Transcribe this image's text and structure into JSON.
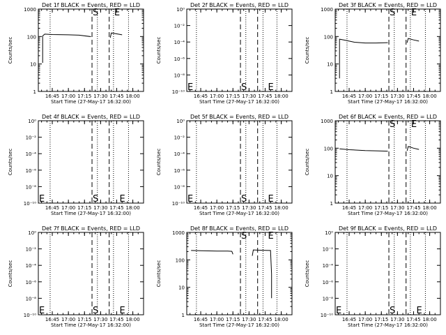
{
  "figure": {
    "background": "#ffffff",
    "foreground": "#000000",
    "columns": 3,
    "rows": 3
  },
  "chart_data": [
    {
      "type": "line",
      "title": "Det 1f BLACK = Events, RED = LLD",
      "ylabel": "Counts/sec",
      "xlabel": "Start Time (27-May-17 16:32:00)",
      "y_scale": "log",
      "ylim": [
        1,
        1000
      ],
      "y_ticks": [
        "1",
        "10",
        "100",
        "1000"
      ],
      "x_ticks": [
        "16:45",
        "17:00",
        "17:15",
        "17:30",
        "17:45",
        "18:00"
      ],
      "xlim": [
        "16:32",
        "18:10"
      ],
      "dotted_lines": [
        "16:43",
        "17:27",
        "17:42",
        "17:56"
      ],
      "dashed_lines": [
        "17:22",
        "17:38"
      ],
      "markers": [
        {
          "label": "S",
          "x": "17:22",
          "pos": "top"
        },
        {
          "label": "E",
          "x": "17:42",
          "pos": "top"
        }
      ],
      "series": [
        {
          "segments": [
            {
              "x": [
                "16:36",
                "16:36",
                "16:38",
                "16:45",
                "17:00",
                "17:10",
                "17:21"
              ],
              "y": [
                11,
                105,
                122,
                118,
                115,
                112,
                99
              ]
            },
            {
              "x": [
                "17:39",
                "17:40",
                "17:45",
                "17:50"
              ],
              "y": [
                90,
                135,
                125,
                115
              ]
            }
          ]
        }
      ]
    },
    {
      "type": "line",
      "title": "Det 2f BLACK = Events, RED = LLD",
      "ylabel": "Counts/sec",
      "xlabel": "Start Time (27-May-17 16:32:00)",
      "y_scale": "log",
      "ylim": [
        1,
        1e-10
      ],
      "y_ticks": [
        "10⁰",
        "10⁻²",
        "10⁻⁴",
        "10⁻⁶",
        "10⁻⁸",
        "10⁻¹⁰"
      ],
      "x_ticks": [
        "16:45",
        "17:00",
        "17:15",
        "17:30",
        "17:45",
        "18:00"
      ],
      "xlim": [
        "16:32",
        "18:10"
      ],
      "dotted_lines": [
        "16:41",
        "17:27",
        "17:43",
        "17:56"
      ],
      "dashed_lines": [
        "17:22",
        "17:38"
      ],
      "markers": [
        {
          "label": "E",
          "x": "16:32",
          "pos": "bottom"
        },
        {
          "label": "S",
          "x": "17:22",
          "pos": "bottom"
        },
        {
          "label": "E",
          "x": "17:47",
          "pos": "bottom"
        }
      ],
      "series": []
    },
    {
      "type": "line",
      "title": "Det 3f BLACK = Events, RED = LLD",
      "ylabel": "Counts/sec",
      "xlabel": "Start Time (27-May-17 16:32:00)",
      "y_scale": "log",
      "ylim": [
        1,
        1000
      ],
      "y_ticks": [
        "1",
        "10",
        "100",
        "1000"
      ],
      "x_ticks": [
        "16:45",
        "17:00",
        "17:15",
        "17:30",
        "17:45",
        "18:00"
      ],
      "xlim": [
        "16:32",
        "18:10"
      ],
      "dotted_lines": [
        "16:43",
        "17:27",
        "17:42",
        "17:56"
      ],
      "dashed_lines": [
        "17:22",
        "17:38"
      ],
      "markers": [
        {
          "label": "S",
          "x": "17:22",
          "pos": "top"
        },
        {
          "label": "E",
          "x": "17:42",
          "pos": "top"
        }
      ],
      "series": [
        {
          "segments": [
            {
              "x": [
                "16:36",
                "16:36",
                "16:40",
                "16:50",
                "17:00",
                "17:10",
                "17:21"
              ],
              "y": [
                3,
                80,
                75,
                62,
                58,
                58,
                60
              ]
            },
            {
              "x": [
                "17:39",
                "17:40",
                "17:45",
                "17:50"
              ],
              "y": [
                60,
                85,
                75,
                68
              ]
            }
          ]
        }
      ]
    },
    {
      "type": "line",
      "title": "Det 4f BLACK = Events, RED = LLD",
      "ylabel": "Counts/sec",
      "xlabel": "Start Time (27-May-17 16:32:00)",
      "y_scale": "log",
      "ylim": [
        1,
        1e-10
      ],
      "y_ticks": [
        "10⁰",
        "10⁻²",
        "10⁻⁴",
        "10⁻⁶",
        "10⁻⁸",
        "10⁻¹⁰"
      ],
      "x_ticks": [
        "16:45",
        "17:00",
        "17:15",
        "17:30",
        "17:45",
        "18:00"
      ],
      "xlim": [
        "16:32",
        "18:10"
      ],
      "dotted_lines": [
        "16:43",
        "17:27",
        "17:42",
        "17:56"
      ],
      "dashed_lines": [
        "17:22",
        "17:38"
      ],
      "markers": [
        {
          "label": "E",
          "x": "16:32",
          "pos": "bottom"
        },
        {
          "label": "S",
          "x": "17:22",
          "pos": "bottom"
        },
        {
          "label": "E",
          "x": "17:47",
          "pos": "bottom"
        }
      ],
      "series": []
    },
    {
      "type": "line",
      "title": "Det 5f BLACK = Events, RED = LLD",
      "ylabel": "Counts/sec",
      "xlabel": "Start Time (27-May-17 16:32:00)",
      "y_scale": "log",
      "ylim": [
        1,
        1e-10
      ],
      "y_ticks": [
        "10⁰",
        "10⁻²",
        "10⁻⁴",
        "10⁻⁶",
        "10⁻⁸",
        "10⁻¹⁰"
      ],
      "x_ticks": [
        "16:45",
        "17:00",
        "17:15",
        "17:30",
        "17:45",
        "18:00"
      ],
      "xlim": [
        "16:32",
        "18:10"
      ],
      "dotted_lines": [
        "16:41",
        "17:27",
        "17:43",
        "17:56"
      ],
      "dashed_lines": [
        "17:22",
        "17:38"
      ],
      "markers": [
        {
          "label": "E",
          "x": "16:32",
          "pos": "bottom"
        },
        {
          "label": "S",
          "x": "17:22",
          "pos": "bottom"
        },
        {
          "label": "E",
          "x": "17:47",
          "pos": "bottom"
        }
      ],
      "series": []
    },
    {
      "type": "line",
      "title": "Det 6f BLACK = Events, RED = LLD",
      "ylabel": "Counts/sec",
      "xlabel": "Start Time (27-May-17 16:32:00)",
      "y_scale": "log",
      "ylim": [
        1,
        1000
      ],
      "y_ticks": [
        "1",
        "10",
        "100",
        "1000"
      ],
      "x_ticks": [
        "16:45",
        "17:00",
        "17:15",
        "17:30",
        "17:45",
        "18:00"
      ],
      "xlim": [
        "16:32",
        "18:10"
      ],
      "dotted_lines": [
        "16:43",
        "17:27",
        "17:42",
        "17:56"
      ],
      "dashed_lines": [
        "17:22",
        "17:38"
      ],
      "markers": [
        {
          "label": "S",
          "x": "17:22",
          "pos": "top"
        },
        {
          "label": "E",
          "x": "17:42",
          "pos": "top"
        }
      ],
      "series": [
        {
          "segments": [
            {
              "x": [
                "16:36",
                "16:45",
                "17:00",
                "17:10",
                "17:21"
              ],
              "y": [
                95,
                88,
                82,
                80,
                78
              ]
            },
            {
              "x": [
                "17:39",
                "17:40",
                "17:45",
                "17:50"
              ],
              "y": [
                80,
                115,
                100,
                90
              ]
            }
          ]
        }
      ]
    },
    {
      "type": "line",
      "title": "Det 7f BLACK = Events, RED = LLD",
      "ylabel": "Counts/sec",
      "xlabel": "Start Time (27-May-17 16:32:00)",
      "y_scale": "log",
      "ylim": [
        1,
        1e-10
      ],
      "y_ticks": [
        "10⁰",
        "10⁻²",
        "10⁻⁴",
        "10⁻⁶",
        "10⁻⁸",
        "10⁻¹⁰"
      ],
      "x_ticks": [
        "16:45",
        "17:00",
        "17:15",
        "17:30",
        "17:45",
        "18:00"
      ],
      "xlim": [
        "16:32",
        "18:10"
      ],
      "dotted_lines": [
        "16:43",
        "17:27",
        "17:42",
        "17:56"
      ],
      "dashed_lines": [
        "17:22",
        "17:38"
      ],
      "markers": [
        {
          "label": "E",
          "x": "16:32",
          "pos": "bottom"
        },
        {
          "label": "S",
          "x": "17:22",
          "pos": "bottom"
        },
        {
          "label": "E",
          "x": "17:47",
          "pos": "bottom"
        }
      ],
      "series": []
    },
    {
      "type": "line",
      "title": "Det 8f BLACK = Events, RED = LLD",
      "ylabel": "Counts/sec",
      "xlabel": "Start Time (27-May-17 16:32:00)",
      "y_scale": "log",
      "ylim": [
        1,
        1000
      ],
      "y_ticks": [
        "1",
        "10",
        "100",
        "1000"
      ],
      "x_ticks": [
        "16:45",
        "17:00",
        "17:15",
        "17:30",
        "17:45",
        "18:00"
      ],
      "xlim": [
        "16:32",
        "18:10"
      ],
      "dotted_lines": [
        "16:41",
        "17:27",
        "17:43",
        "17:56"
      ],
      "dashed_lines": [
        "17:22",
        "17:38"
      ],
      "markers": [
        {
          "label": "S",
          "x": "17:22",
          "pos": "top"
        },
        {
          "label": "E",
          "x": "17:47",
          "pos": "top"
        }
      ],
      "series": [
        {
          "segments": [
            {
              "x": [
                "16:36",
                "16:45",
                "17:00",
                "17:10",
                "17:14",
                "17:15"
              ],
              "y": [
                220,
                215,
                210,
                210,
                205,
                160
              ]
            },
            {
              "x": [
                "17:33",
                "17:34",
                "17:40",
                "17:50",
                "17:51",
                "17:51"
              ],
              "y": [
                140,
                230,
                225,
                220,
                30,
                4
              ]
            }
          ]
        }
      ]
    },
    {
      "type": "line",
      "title": "Det 9f BLACK = Events, RED = LLD",
      "ylabel": "Counts/sec",
      "xlabel": "Start Time (27-May-17 16:32:00)",
      "y_scale": "log",
      "ylim": [
        1,
        1e-10
      ],
      "y_ticks": [
        "10⁰",
        "10⁻²",
        "10⁻⁴",
        "10⁻⁶",
        "10⁻⁸",
        "10⁻¹⁰"
      ],
      "x_ticks": [
        "16:45",
        "17:00",
        "17:15",
        "17:30",
        "17:45",
        "18:00"
      ],
      "xlim": [
        "16:32",
        "18:10"
      ],
      "dotted_lines": [
        "16:43",
        "17:27",
        "17:42",
        "17:56"
      ],
      "dashed_lines": [
        "17:22",
        "17:38"
      ],
      "markers": [
        {
          "label": "E",
          "x": "16:32",
          "pos": "bottom"
        },
        {
          "label": "S",
          "x": "17:22",
          "pos": "bottom"
        },
        {
          "label": "E",
          "x": "17:47",
          "pos": "bottom"
        }
      ],
      "series": []
    }
  ]
}
